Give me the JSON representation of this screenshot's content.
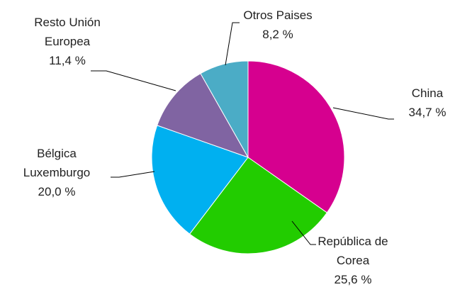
{
  "chart_data": {
    "type": "pie",
    "categories": [
      "China",
      "República de Corea",
      "Bélgica Luxemburgo",
      "Resto Unión Europea",
      "Otros Paises"
    ],
    "values": [
      34.7,
      25.6,
      20.0,
      11.4,
      8.2
    ],
    "value_labels": [
      "34,7 %",
      "25,6 %",
      "20,0 %",
      "11,4 %",
      "8,2 %"
    ],
    "colors": [
      "#d6008f",
      "#22cc00",
      "#00b0f0",
      "#8064a2",
      "#4bacc6"
    ]
  }
}
